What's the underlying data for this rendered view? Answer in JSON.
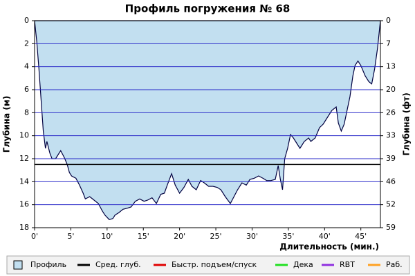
{
  "chart_data": {
    "type": "area",
    "title": "Профиль погружения № 68",
    "xlabel": "Длительность (мин.)",
    "ylabel": "Глубина (м)",
    "y2label": "Глубина (фт)",
    "x": [
      0,
      0.3,
      0.6,
      0.8,
      1.0,
      1.2,
      1.5,
      1.7,
      2.1,
      2.4,
      2.9,
      3.2,
      3.6,
      4.1,
      4.5,
      4.8,
      5.1,
      5.7,
      6.2,
      6.7,
      7.0,
      7.6,
      8.2,
      8.8,
      9.3,
      9.7,
      10.3,
      10.8,
      11.1,
      11.6,
      12.2,
      12.8,
      13.3,
      13.9,
      14.5,
      15.1,
      15.6,
      16.2,
      16.8,
      17.4,
      17.9,
      18.3,
      18.9,
      19.4,
      20.0,
      20.6,
      21.2,
      21.7,
      22.3,
      22.9,
      23.4,
      24.0,
      24.6,
      25.2,
      25.7,
      26.3,
      27.0,
      27.5,
      28.0,
      28.6,
      29.2,
      29.7,
      30.3,
      30.9,
      31.5,
      32.0,
      32.6,
      33.2,
      33.6,
      33.9,
      34.2,
      34.5,
      34.9,
      35.3,
      35.7,
      36.0,
      36.6,
      37.2,
      37.8,
      38.1,
      38.7,
      39.3,
      39.8,
      40.4,
      41.0,
      41.6,
      41.9,
      42.3,
      42.7,
      43.1,
      43.5,
      43.9,
      44.2,
      44.6,
      45.0,
      45.6,
      46.1,
      46.5,
      46.9,
      47.3,
      47.6,
      47.7
    ],
    "series": [
      {
        "name": "Профиль",
        "color": "#c2dff0",
        "stroke": "#000040",
        "values": [
          0,
          1.8,
          4.2,
          6.0,
          7.8,
          9.6,
          11.1,
          10.5,
          11.5,
          12.0,
          12.0,
          11.7,
          11.3,
          11.9,
          12.5,
          13.2,
          13.5,
          13.7,
          14.3,
          15.0,
          15.5,
          15.3,
          15.6,
          15.9,
          16.5,
          16.9,
          17.3,
          17.2,
          16.9,
          16.7,
          16.4,
          16.3,
          16.2,
          15.7,
          15.5,
          15.7,
          15.6,
          15.4,
          15.9,
          15.1,
          15.0,
          14.3,
          13.3,
          14.3,
          15.0,
          14.5,
          13.8,
          14.4,
          14.7,
          13.9,
          14.1,
          14.4,
          14.4,
          14.5,
          14.7,
          15.3,
          15.9,
          15.3,
          14.7,
          14.1,
          14.3,
          13.8,
          13.7,
          13.5,
          13.7,
          13.9,
          13.9,
          13.8,
          12.6,
          13.8,
          14.7,
          12.0,
          11.1,
          9.9,
          10.2,
          10.5,
          11.1,
          10.5,
          10.2,
          10.5,
          10.2,
          9.3,
          9.0,
          8.4,
          7.8,
          7.5,
          8.9,
          9.6,
          9.0,
          7.8,
          6.6,
          4.8,
          3.9,
          3.5,
          3.9,
          4.8,
          5.3,
          5.5,
          4.2,
          2.4,
          0.6,
          0
        ]
      },
      {
        "name": "Сред. глуб.",
        "color": "#000000",
        "level": 12.5
      },
      {
        "name": "Быстр. подъем/спуск",
        "color": "#e00000"
      },
      {
        "name": "Дека",
        "color": "#20e020"
      },
      {
        "name": "RBT",
        "color": "#9030e0"
      },
      {
        "name": "Раб.",
        "color": "#ffa020"
      }
    ],
    "xlim": [
      0,
      47.7
    ],
    "xticks": [
      {
        "value": 0,
        "label": "0'"
      },
      {
        "value": 5,
        "label": "5'"
      },
      {
        "value": 10,
        "label": "10'"
      },
      {
        "value": 15,
        "label": "15'"
      },
      {
        "value": 20,
        "label": "20'"
      },
      {
        "value": 25,
        "label": "25'"
      },
      {
        "value": 30,
        "label": "30'"
      },
      {
        "value": 35,
        "label": "35'"
      },
      {
        "value": 40,
        "label": "40'"
      },
      {
        "value": 45,
        "label": "45'"
      }
    ],
    "ylim": [
      0,
      18
    ],
    "y_inverted": true,
    "yticks": [
      0,
      2,
      4,
      6,
      8,
      10,
      12,
      14,
      16,
      18
    ],
    "y2lim": [
      0,
      59.06
    ],
    "y2ticks": [
      0,
      {
        "value": 6.56,
        "label": "7"
      },
      {
        "value": 13.12,
        "label": "13"
      },
      {
        "value": 19.69,
        "label": "20"
      },
      {
        "value": 26.25,
        "label": "26"
      },
      {
        "value": 32.81,
        "label": "33"
      },
      {
        "value": 39.37,
        "label": "39"
      },
      {
        "value": 45.93,
        "label": "46"
      },
      {
        "value": 52.49,
        "label": "52"
      },
      {
        "value": 59.06,
        "label": "59"
      }
    ],
    "grid": true,
    "grid_color": "#2828c8"
  }
}
